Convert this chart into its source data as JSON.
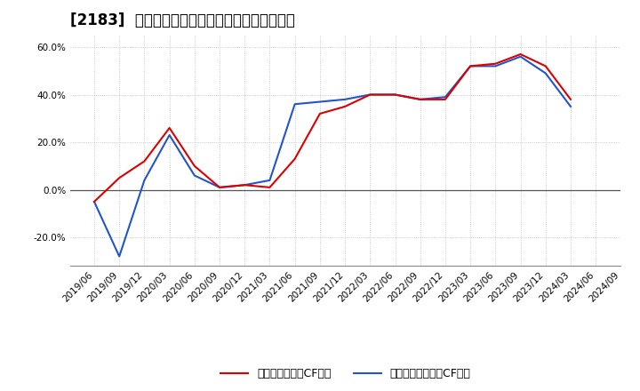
{
  "title": "[2183]  有利子負債キャッシュフロー比率の推移",
  "red_label": "有利子負債営業CF比率",
  "blue_label": "有利子負債フリーCF比率",
  "x_labels": [
    "2019/06",
    "2019/09",
    "2019/12",
    "2020/03",
    "2020/06",
    "2020/09",
    "2020/12",
    "2021/03",
    "2021/06",
    "2021/09",
    "2021/12",
    "2022/03",
    "2022/06",
    "2022/09",
    "2022/12",
    "2023/03",
    "2023/06",
    "2023/09",
    "2023/12",
    "2024/03",
    "2024/06",
    "2024/09"
  ],
  "red_values": [
    -0.05,
    0.05,
    0.12,
    0.26,
    0.1,
    0.01,
    0.02,
    0.01,
    0.13,
    0.32,
    0.35,
    0.4,
    0.4,
    0.38,
    0.38,
    0.52,
    0.53,
    0.57,
    0.52,
    0.38,
    null,
    null
  ],
  "blue_values": [
    -0.05,
    -0.28,
    0.04,
    0.23,
    0.06,
    0.01,
    0.02,
    0.04,
    0.36,
    0.37,
    0.38,
    0.4,
    0.4,
    0.38,
    0.39,
    0.52,
    0.52,
    0.56,
    0.49,
    0.35,
    null,
    null
  ],
  "ylim": [
    -0.32,
    0.65
  ],
  "yticks": [
    -0.2,
    0.0,
    0.2,
    0.4,
    0.6
  ],
  "red_color": "#dd0000",
  "blue_color": "#2255cc",
  "background_color": "#ffffff",
  "grid_color": "#bbbbbb",
  "title_fontsize": 12,
  "legend_fontsize": 9,
  "tick_fontsize": 7.5
}
